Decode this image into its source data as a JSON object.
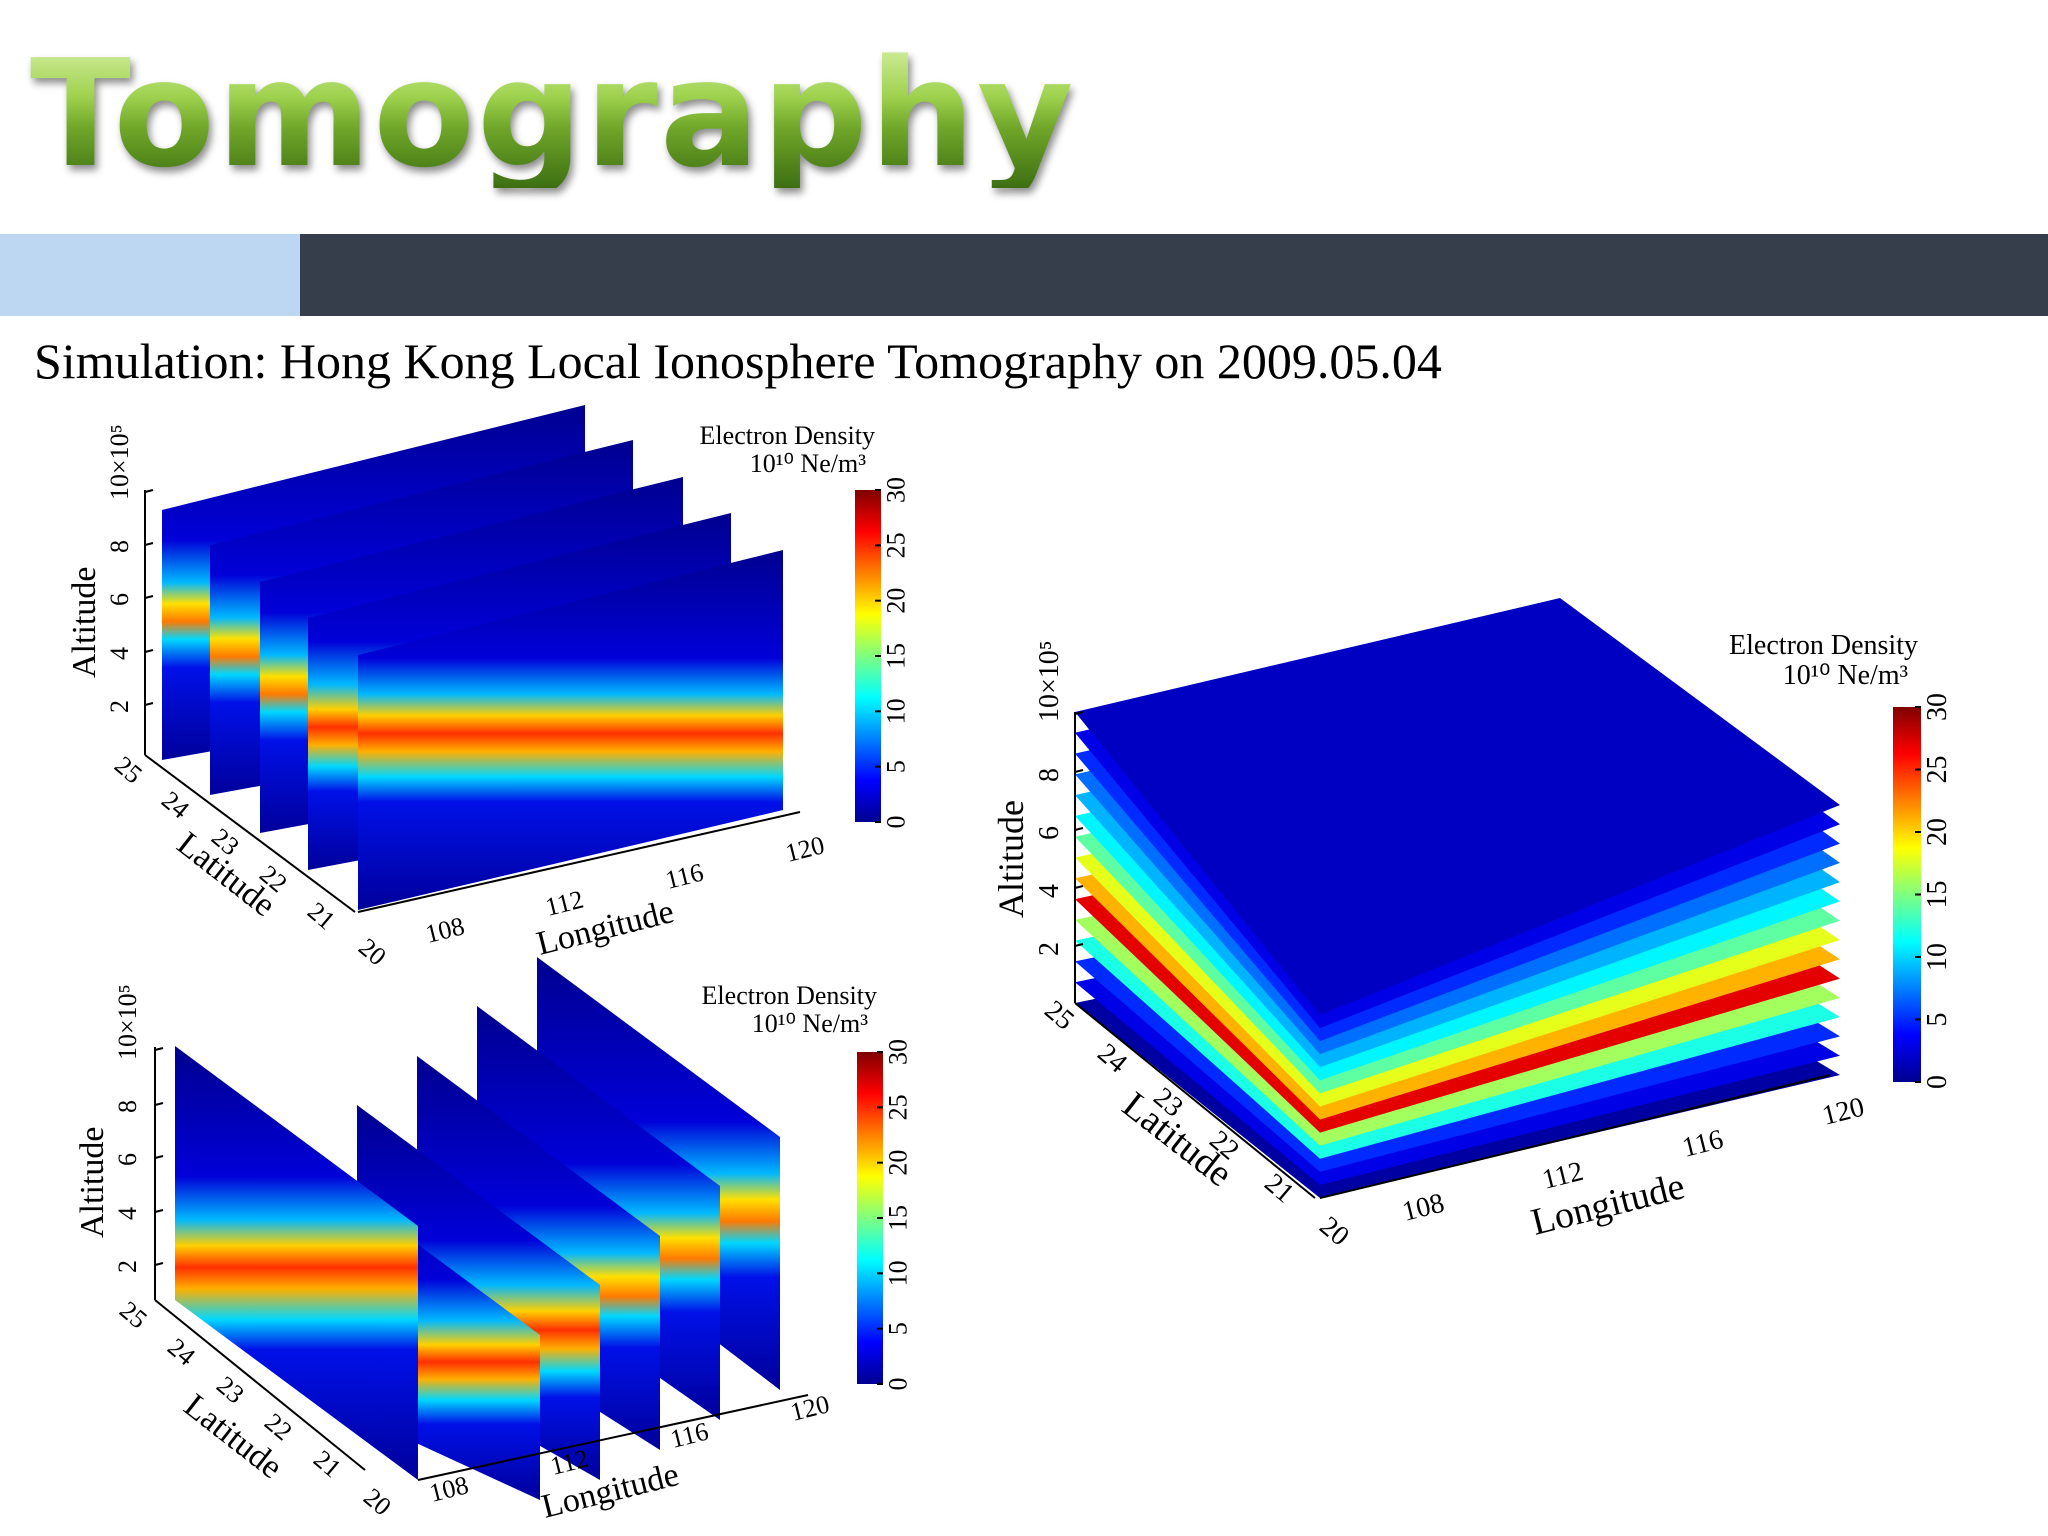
{
  "slide": {
    "title": "Tomography",
    "subtitle": "Simulation: Hong Kong Local Ionosphere Tomography on 2009.05.04",
    "accent_light": "#bdd7f2",
    "accent_dark": "#363d4b"
  },
  "chart_data": [
    {
      "type": "heatmap",
      "view": "latitude slices",
      "xlabel": "Longitude",
      "ylabel": "Latitude",
      "zlabel": "Altitude",
      "z_exponent": "10×10⁵",
      "xticks": [
        108,
        112,
        116,
        120
      ],
      "yticks": [
        25,
        24,
        23,
        22,
        21,
        20
      ],
      "zticks": [
        2,
        4,
        6,
        8
      ],
      "xlim": [
        105,
        120
      ],
      "ylim": [
        20,
        25
      ],
      "zlim": [
        0,
        10
      ],
      "slices_at_latitude": [
        25,
        24,
        23,
        22,
        21
      ],
      "colorbar": {
        "title": "Electron Density",
        "units": "10¹⁰ Ne/m³",
        "ticks": [
          0,
          5,
          10,
          15,
          20,
          25,
          30
        ],
        "range": [
          0,
          30
        ]
      }
    },
    {
      "type": "heatmap",
      "view": "longitude slices",
      "xlabel": "Longitude",
      "ylabel": "Latitude",
      "zlabel": "Altitude",
      "z_exponent": "10×10⁵",
      "xticks": [
        108,
        112,
        116,
        120
      ],
      "yticks": [
        25,
        24,
        23,
        22,
        21,
        20
      ],
      "zticks": [
        2,
        4,
        6,
        8
      ],
      "xlim": [
        105,
        120
      ],
      "ylim": [
        20,
        25
      ],
      "zlim": [
        0,
        10
      ],
      "slices_at_longitude": [
        105,
        108,
        111,
        114,
        117,
        120
      ],
      "colorbar": {
        "title": "Electron Density",
        "units": "10¹⁰ Ne/m³",
        "ticks": [
          0,
          5,
          10,
          15,
          20,
          25,
          30
        ],
        "range": [
          0,
          30
        ]
      }
    },
    {
      "type": "heatmap",
      "view": "altitude slices",
      "xlabel": "Longitude",
      "ylabel": "Latitude",
      "zlabel": "Altitude",
      "z_exponent": "10×10⁵",
      "xticks": [
        108,
        112,
        116,
        120
      ],
      "yticks": [
        25,
        24,
        23,
        22,
        21,
        20
      ],
      "zticks": [
        2,
        4,
        6,
        8
      ],
      "xlim": [
        105,
        120
      ],
      "ylim": [
        20,
        25
      ],
      "zlim": [
        0,
        10
      ],
      "slice_densities_bottom_to_top": [
        1,
        3,
        5,
        12,
        16,
        27,
        21,
        18,
        14,
        11,
        9,
        7,
        5,
        3,
        2
      ],
      "colorbar": {
        "title": "Electron Density",
        "units": "10¹⁰ Ne/m³",
        "ticks": [
          0,
          5,
          10,
          15,
          20,
          25,
          30
        ],
        "range": [
          0,
          30
        ]
      }
    }
  ]
}
